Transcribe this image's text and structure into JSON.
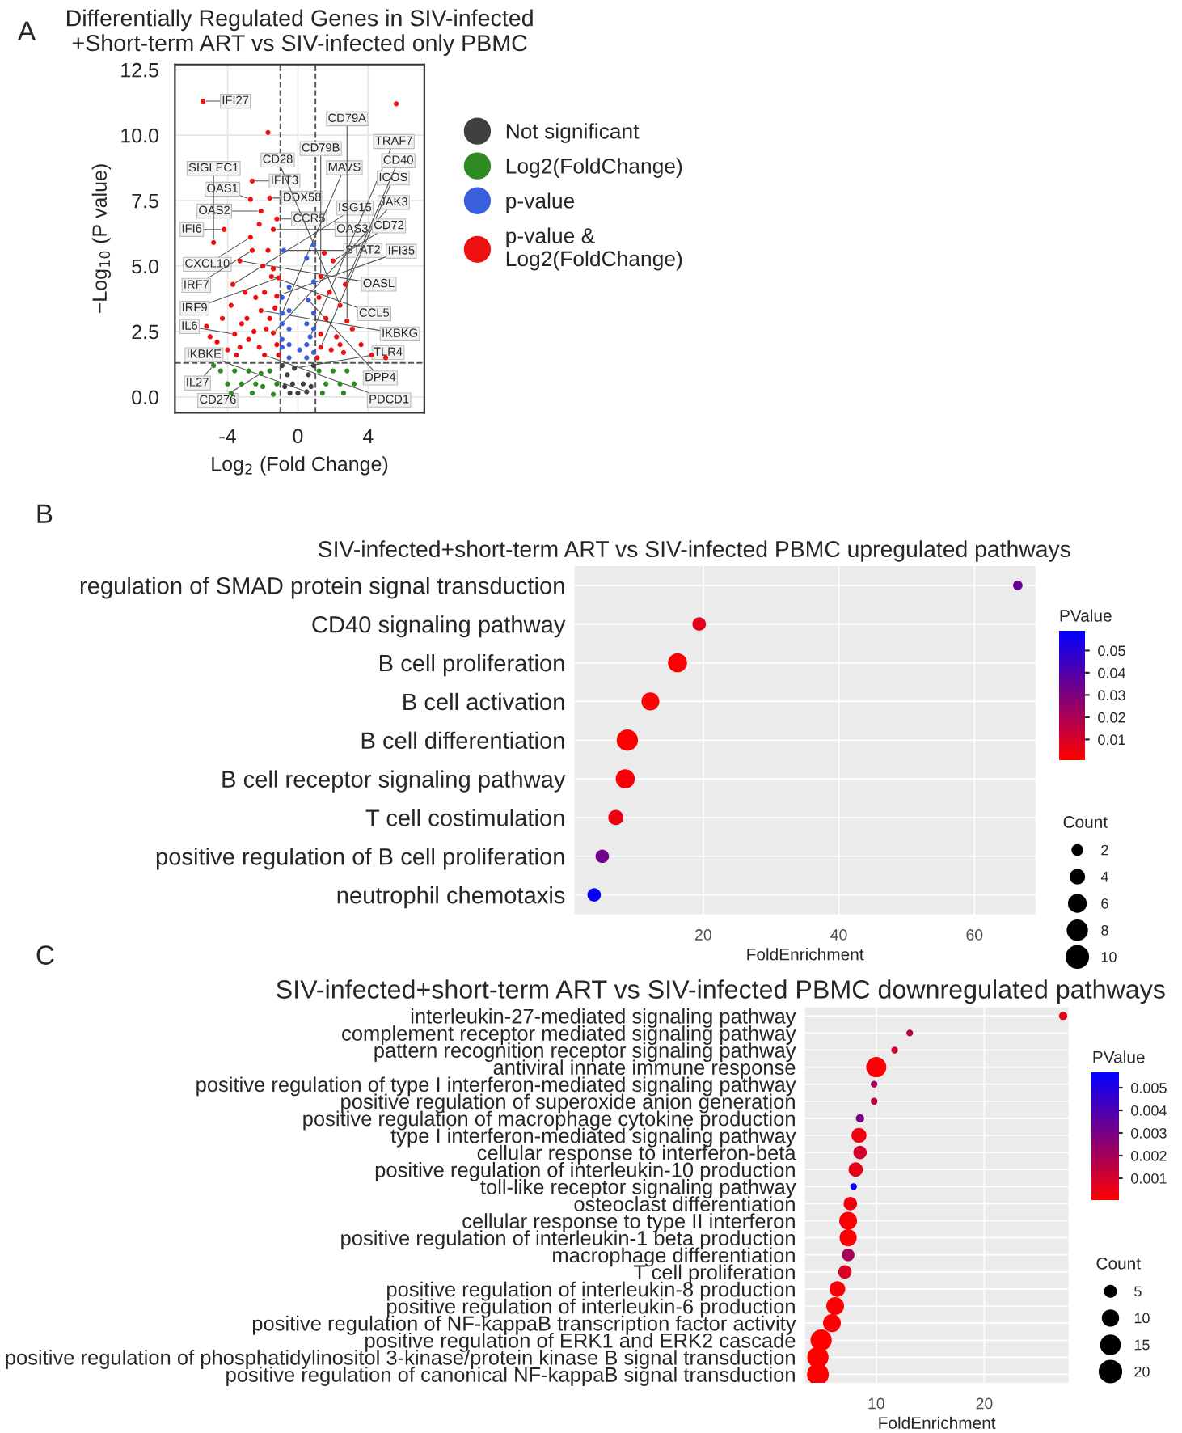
{
  "chart_data": [
    {
      "type": "scatter",
      "title": "Differentially Regulated Genes in SIV-infected\n+Short-term ART vs SIV-infected only PBMC",
      "xlabel": "Log$_{2}$ (Fold Change)",
      "ylabel": "−Log$_{10}$ (P value)",
      "xlim": [
        -7.0,
        7.2
      ],
      "xticks": [
        {
          "value": -4,
          "label": "-4"
        },
        0,
        4
      ],
      "ylim": [
        -0.6,
        12.7
      ],
      "yticks": [
        {
          "value": 0,
          "label": "0.0"
        },
        2.5,
        {
          "value": 5,
          "label": "5.0"
        },
        7.5,
        {
          "value": 10,
          "label": "10.0"
        },
        12.5
      ],
      "grid": true,
      "legend": "right",
      "marker": "circle",
      "ref_lines": [
        {
          "axis": "x",
          "value": -1,
          "line_style": "dashed"
        },
        {
          "axis": "x",
          "value": 1,
          "line_style": "dashed"
        },
        {
          "axis": "y",
          "value": 1.3,
          "line_style": "dashed"
        }
      ],
      "series": [
        {
          "name": "Not significant",
          "color": "#404040",
          "x": [
            -0.9,
            -0.6,
            -0.3,
            0,
            0.3,
            0.6,
            0.9,
            -0.75,
            0.75,
            -0.45,
            -0.2,
            0.5
          ],
          "values": [
            1.2,
            0.85,
            0.5,
            0.15,
            0.5,
            0.85,
            1.2,
            0.4,
            0.4,
            0.15,
            1.1,
            0.2
          ]
        },
        {
          "name": "Log2(FoldChange)",
          "color": "#2e8b22",
          "x": [
            -4.4,
            -4.0,
            -3.6,
            -3.2,
            -2.8,
            -2.4,
            -2.0,
            -1.6,
            -1.2,
            -3.8,
            -2.6,
            -1.4,
            1.2,
            1.6,
            2.0,
            2.4,
            2.8,
            3.2,
            1.4,
            2.6,
            -4.8,
            -2.1
          ],
          "values": [
            1.0,
            0.5,
            1.0,
            0.5,
            1.0,
            0.5,
            0.4,
            1.0,
            0.5,
            0.15,
            0.15,
            0.1,
            1.0,
            0.5,
            1.0,
            0.5,
            1.0,
            0.5,
            0.15,
            0.15,
            1.2,
            0.9
          ]
        },
        {
          "name": "p-value",
          "color": "#3a5fdc",
          "x": [
            -0.9,
            -0.9,
            -0.9,
            -0.9,
            -0.5,
            -0.5,
            -0.5,
            -0.5,
            -0.5,
            0.5,
            0.5,
            0.5,
            0.9,
            0.9,
            0.9,
            0.9,
            0.5,
            0.9,
            0.1,
            -0.8,
            0.6,
            -0.9,
            0.7
          ],
          "values": [
            1.9,
            2.2,
            2.8,
            3.8,
            1.5,
            2.0,
            2.6,
            3.3,
            4.2,
            1.5,
            2.0,
            2.8,
            1.7,
            2.6,
            3.2,
            4.4,
            5.3,
            5.8,
            1.8,
            5.6,
            3.7,
            3.2,
            2.3
          ]
        },
        {
          "name": "p-value &\nLog2(FoldChange)",
          "color": "#ee1111",
          "x": [
            -5.2,
            -5.0,
            -4.6,
            -4.3,
            -4.0,
            -3.8,
            -3.5,
            -3.2,
            -3.0,
            -2.8,
            -2.4,
            -2.2,
            -2.0,
            -1.8,
            -1.6,
            -1.4,
            -1.2,
            -1.1,
            -3.3,
            -2.9,
            -2.5,
            -1.9,
            -1.3,
            -1.7,
            -2.2,
            1.1,
            1.3,
            1.6,
            1.9,
            2.2,
            2.6,
            3.1,
            3.6,
            4.2,
            5.0,
            1.2,
            1.5,
            1.8,
            2.4,
            -1.7,
            5.6,
            -5.4,
            -2.6,
            -2.7,
            -1.6,
            -2.1,
            -1.2,
            -4.2,
            -2.7,
            -1.4,
            -2.6,
            -3.3,
            -4.8,
            -1.5,
            -1.1,
            -3.7,
            -1.2,
            -2.1,
            -3.6,
            -1.4,
            -1.9,
            1.3,
            2.0,
            1.3,
            2.7,
            2.4,
            2.8
          ],
          "values": [
            2.7,
            2.3,
            2.1,
            3.0,
            1.8,
            3.5,
            1.6,
            2.8,
            4.0,
            2.2,
            3.8,
            1.9,
            5.0,
            2.6,
            3.0,
            4.9,
            2.0,
            1.6,
            1.9,
            3.0,
            2.5,
            4.0,
            3.4,
            5.6,
            6.6,
            1.5,
            2.4,
            3.0,
            1.8,
            2.3,
            1.7,
            2.6,
            2.0,
            1.6,
            1.5,
            3.8,
            5.5,
            4.0,
            2.0,
            10.1,
            11.2,
            11.3,
            8.25,
            7.55,
            7.6,
            7.1,
            6.8,
            6.4,
            6.1,
            6.4,
            5.6,
            5.2,
            5.9,
            4.6,
            4.55,
            4.3,
            3.85,
            3.3,
            2.4,
            2.45,
            1.6,
            1.9,
            5.2,
            4.6,
            4.3,
            3.5,
            2.9
          ]
        }
      ],
      "annotations": [
        "A",
        {
          "text": "IFI27",
          "x": -5.4,
          "y": 11.3
        },
        {
          "text": "IFIT3",
          "x": -2.6,
          "y": 8.25
        },
        {
          "text": "OAS1",
          "x": -2.7,
          "y": 7.55
        },
        {
          "text": "DDX58",
          "x": -1.6,
          "y": 7.6
        },
        {
          "text": "OAS2",
          "x": -2.1,
          "y": 7.1
        },
        {
          "text": "CCR5",
          "x": -1.2,
          "y": 6.8
        },
        {
          "text": "IFI6",
          "x": -4.2,
          "y": 6.4
        },
        {
          "text": "CXCL10",
          "x": -2.7,
          "y": 6.1
        },
        {
          "text": "OAS3",
          "x": -1.4,
          "y": 6.4
        },
        {
          "text": "IRF7",
          "x": -2.6,
          "y": 5.6
        },
        {
          "text": "STAT2",
          "x": -0.8,
          "y": 5.6
        },
        {
          "text": "OASL",
          "x": -3.3,
          "y": 5.2
        },
        {
          "text": "SIGLEC1",
          "x": -4.8,
          "y": 5.9
        },
        {
          "text": "CCL5",
          "x": -1.5,
          "y": 4.6
        },
        {
          "text": "IRF9",
          "x": -1.1,
          "y": 4.55
        },
        {
          "text": "ISG15",
          "x": -3.7,
          "y": 4.3
        },
        {
          "text": "IFI35",
          "x": -1.2,
          "y": 3.85
        },
        {
          "text": "DPP4",
          "x": 0.6,
          "y": 3.7
        },
        {
          "text": "IKBKG",
          "x": -2.1,
          "y": 3.3
        },
        {
          "text": "MAVS",
          "x": -0.9,
          "y": 3.2
        },
        {
          "text": "IL6",
          "x": -3.6,
          "y": 2.4
        },
        {
          "text": "JAK3",
          "x": -1.4,
          "y": 2.45
        },
        {
          "text": "TRAF7",
          "x": 0.7,
          "y": 2.3
        },
        {
          "text": "IL27",
          "x": -4.8,
          "y": 1.2
        },
        {
          "text": "PDCD1",
          "x": -1.9,
          "y": 1.6
        },
        {
          "text": "TLR4",
          "x": -0.2,
          "y": 1.1
        },
        {
          "text": "ICOS",
          "x": 1.3,
          "y": 1.9
        },
        {
          "text": "IKBKE",
          "x": 0.5,
          "y": 0.2
        },
        {
          "text": "CD276",
          "x": -2.1,
          "y": 0.9
        },
        {
          "text": "CD72",
          "x": 2.0,
          "y": 5.2
        },
        {
          "text": "CD79B",
          "x": 1.3,
          "y": 4.6
        },
        {
          "text": "CD40",
          "x": 2.7,
          "y": 4.3
        },
        {
          "text": "CD28",
          "x": 2.4,
          "y": 3.5
        },
        {
          "text": "CD79A",
          "x": 2.8,
          "y": 2.9
        }
      ]
    },
    {
      "type": "scatter",
      "orientation": "horizontal",
      "title": "SIV-infected+short-term ART vs SIV-infected PBMC upregulated pathways",
      "xlabel": "FoldEnrichment",
      "categories": [
        "regulation of SMAD protein signal transduction",
        "CD40 signaling pathway",
        "B cell proliferation",
        "B cell activation",
        "B cell differentiation",
        "B cell receptor signaling pathway",
        "T cell costimulation",
        "positive regulation of B cell proliferation",
        "neutrophil chemotaxis"
      ],
      "values": [
        66.4,
        19.4,
        16.2,
        12.2,
        8.8,
        8.5,
        7.1,
        5.1,
        3.9
      ],
      "cvalues": [
        0.035,
        0.008,
        0.002,
        0.002,
        0.001,
        0.003,
        0.005,
        0.033,
        0.057
      ],
      "sizes": [
        2,
        4,
        8,
        7,
        10,
        8,
        5,
        4,
        4
      ],
      "size_legend": [
        2,
        4,
        6,
        8,
        10
      ],
      "legend_title": "Count",
      "clabel": "PValue",
      "clim": [
        0.001,
        0.059
      ],
      "cticks": [
        0.01,
        0.02,
        0.03,
        0.04,
        0.05
      ],
      "xlim": [
        1,
        69
      ],
      "xticks": [
        20,
        40,
        60
      ],
      "grid": true,
      "annotations": [
        "B"
      ]
    },
    {
      "type": "scatter",
      "orientation": "horizontal",
      "title": "SIV-infected+short-term ART vs SIV-infected PBMC downregulated pathways",
      "xlabel": "FoldEnrichment",
      "categories": [
        "interleukin-27-mediated signaling pathway",
        "complement receptor mediated signaling pathway",
        "pattern recognition receptor signaling pathway",
        "antiviral innate immune response",
        "positive regulation of type I interferon-mediated signaling pathway",
        "positive regulation of superoxide anion generation",
        "positive regulation of macrophage cytokine production",
        "type I interferon-mediated signaling pathway",
        "cellular response to interferon-beta",
        "positive regulation of interleukin-10 production",
        "toll-like receptor signaling pathway",
        "osteoclast differentiation",
        "cellular response to type II interferon",
        "positive regulation of interleukin-1 beta production",
        "macrophage differentiation",
        "T cell proliferation",
        "positive regulation of interleukin-8 production",
        "positive regulation of interleukin-6 production",
        "positive regulation of NF-kappaB transcription factor activity",
        "positive regulation of ERK1 and ERK2 cascade",
        "positive regulation of phosphatidylinositol 3-kinase/protein kinase B signal transduction",
        "positive regulation of canonical NF-kappaB signal transduction"
      ],
      "values": [
        27.3,
        13.1,
        11.7,
        10.0,
        9.8,
        9.8,
        8.5,
        8.4,
        8.5,
        8.1,
        7.9,
        7.6,
        7.4,
        7.4,
        7.4,
        7.1,
        6.4,
        6.2,
        5.9,
        4.9,
        4.6,
        4.6
      ],
      "cvalues": [
        0.0005,
        0.0015,
        0.001,
        0.0001,
        0.002,
        0.0015,
        0.003,
        0.0003,
        0.001,
        0.0005,
        0.0055,
        0.0003,
        0.0001,
        0.0001,
        0.002,
        0.0008,
        0.0002,
        0.0001,
        0.0001,
        0.0,
        0.0,
        0.0
      ],
      "sizes": [
        3,
        2,
        2,
        18,
        2,
        2,
        3,
        10,
        8,
        9,
        2,
        8,
        14,
        13,
        7,
        8,
        11,
        14,
        14,
        20,
        20,
        21
      ],
      "size_legend": [
        5,
        10,
        15,
        20
      ],
      "legend_title": "Count",
      "clabel": "PValue",
      "clim": [
        0.0,
        0.0057
      ],
      "cticks": [
        0.001,
        0.002,
        0.003,
        0.004,
        0.005
      ],
      "xlim": [
        3.4,
        27.8
      ],
      "xticks": [
        10,
        20
      ],
      "grid": true,
      "annotations": [
        "C"
      ]
    }
  ]
}
